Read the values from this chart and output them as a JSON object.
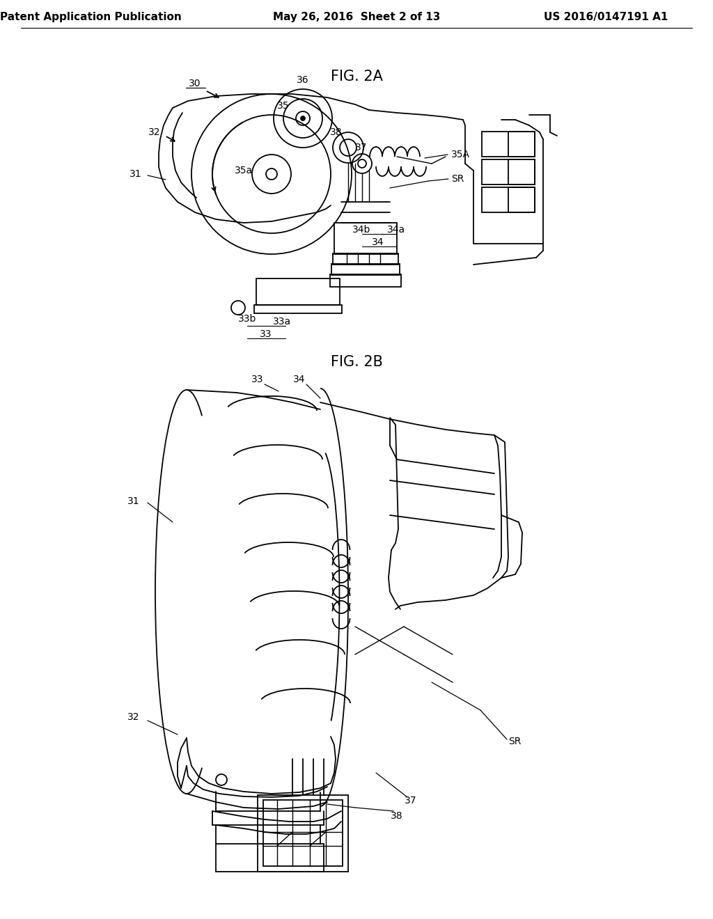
{
  "background_color": "#ffffff",
  "header_left": "Patent Application Publication",
  "header_center": "May 26, 2016  Sheet 2 of 13",
  "header_right": "US 2016/0147191 A1",
  "fig2a_title": "FIG. 2A",
  "fig2b_title": "FIG. 2B",
  "header_fontsize": 11,
  "title_fontsize": 15,
  "label_fontsize": 10
}
